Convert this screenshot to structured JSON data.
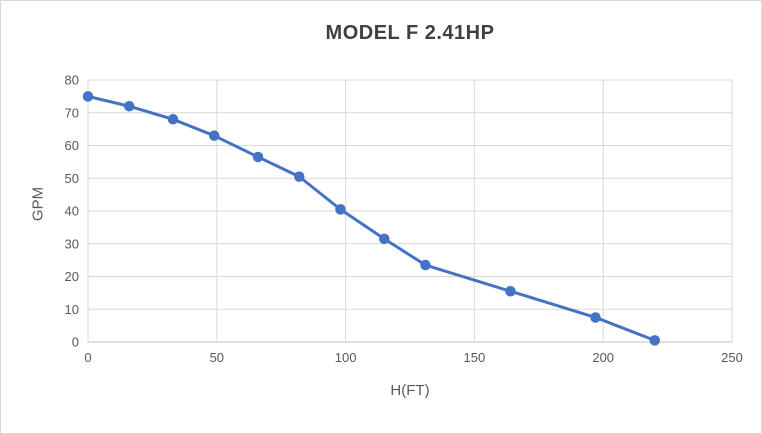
{
  "chart_data": {
    "type": "line",
    "title": "MODEL F 2.41HP",
    "xlabel": "H(FT)",
    "ylabel": "GPM",
    "xlim": [
      0,
      250
    ],
    "ylim": [
      0,
      80
    ],
    "xticks": [
      0,
      50,
      100,
      150,
      200,
      250
    ],
    "yticks": [
      0,
      10,
      20,
      30,
      40,
      50,
      60,
      70,
      80
    ],
    "grid": true,
    "legend_position": "none",
    "series": [
      {
        "name": "MODEL F 2.41HP",
        "color": "#4472C4",
        "marker": "circle",
        "x": [
          0,
          16,
          33,
          49,
          66,
          82,
          98,
          115,
          131,
          164,
          197,
          220
        ],
        "y": [
          75,
          72,
          68,
          63,
          56.5,
          50.5,
          40.5,
          31.5,
          23.5,
          15.5,
          7.5,
          0.5
        ]
      }
    ]
  },
  "colors": {
    "series": "#4472C4",
    "gridline": "#D9D9D9",
    "axis_line": "#BFBFBF",
    "tick_label": "#595959",
    "title": "#404040",
    "background": "#FFFFFF",
    "frame_border": "#D9D9D9"
  }
}
